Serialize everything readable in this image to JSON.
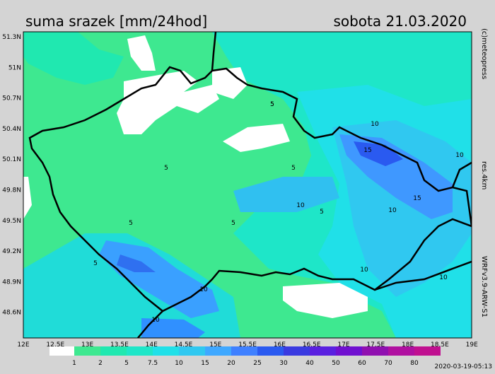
{
  "header": {
    "title": "suma srazek [mm/24hod]",
    "date": "sobota 21.03.2020"
  },
  "side": {
    "copyright": "(c)meteopress",
    "resolution": "res.4km",
    "model": "WRFv3.9-ARW-S1"
  },
  "lat_labels": [
    "51.3N",
    "51N",
    "50.7N",
    "50.4N",
    "50.1N",
    "49.8N",
    "49.5N",
    "49.2N",
    "48.9N",
    "48.6N"
  ],
  "lon_labels": [
    "12E",
    "12.5E",
    "13E",
    "13.5E",
    "14E",
    "14.5E",
    "15E",
    "15.5E",
    "16E",
    "16.5E",
    "17E",
    "17.5E",
    "18E",
    "18.5E",
    "19E"
  ],
  "colorbar": [
    "1",
    "2",
    "5",
    "7.5",
    "10",
    "15",
    "20",
    "25",
    "30",
    "40",
    "50",
    "60",
    "70",
    "80"
  ],
  "contour_labels": [
    "5",
    "5",
    "5",
    "5",
    "5",
    "5",
    "10",
    "10",
    "10",
    "15",
    "15",
    "10",
    "10",
    "10",
    "10",
    "5",
    "5",
    "10"
  ],
  "timestamp": "2020-03-19-05:13"
}
